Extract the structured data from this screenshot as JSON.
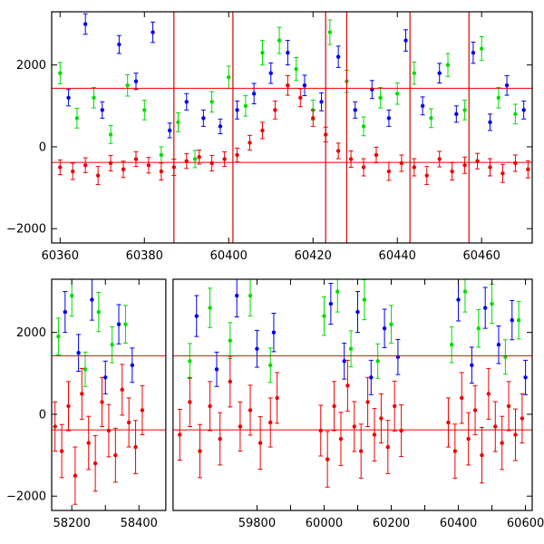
{
  "chart_data": [
    {
      "type": "scatter",
      "panel": "top",
      "title": "",
      "xlabel": "",
      "ylabel": "",
      "xlim": [
        60358,
        60472
      ],
      "ylim": [
        -2350,
        3300
      ],
      "x_ticks": [
        60360,
        60380,
        60400,
        60420,
        60440,
        60460
      ],
      "x_tick_labels": [
        "60360",
        "60380",
        "60400",
        "60420",
        "60440",
        "60460"
      ],
      "y_ticks": [
        -2000,
        0,
        2000
      ],
      "y_tick_labels": [
        "−2000",
        "0",
        "2000"
      ],
      "grid": false,
      "legend": "none",
      "reference_lines_y": [
        1430,
        -380
      ],
      "vertical_lines_x": [
        60387,
        60401,
        60423,
        60428,
        60443,
        60457
      ],
      "series": [
        {
          "color": "#0000ee",
          "x": [
            60362,
            60366,
            60370,
            60374,
            60378,
            60382,
            60386,
            60390,
            60394,
            60398,
            60402,
            60406,
            60410,
            60414,
            60418,
            60422,
            60426,
            60430,
            60434,
            60438,
            60442,
            60446,
            60450,
            60454,
            60458,
            60462,
            60466,
            60470
          ],
          "y": [
            1200,
            3000,
            900,
            2500,
            1600,
            2800,
            400,
            1100,
            700,
            500,
            900,
            1300,
            1800,
            2300,
            1500,
            1100,
            2200,
            900,
            1400,
            700,
            2600,
            1000,
            1800,
            800,
            2300,
            600,
            1500,
            900
          ],
          "err": [
            200,
            250,
            200,
            220,
            200,
            250,
            180,
            200,
            200,
            180,
            220,
            250,
            250,
            300,
            250,
            220,
            260,
            200,
            220,
            200,
            260,
            220,
            240,
            200,
            260,
            200,
            240,
            220
          ]
        },
        {
          "color": "#00dd00",
          "x": [
            60360,
            60364,
            60368,
            60372,
            60376,
            60380,
            60384,
            60388,
            60392,
            60396,
            60400,
            60404,
            60408,
            60412,
            60416,
            60420,
            60424,
            60428,
            60432,
            60436,
            60440,
            60444,
            60448,
            60452,
            60456,
            60460,
            60464,
            60468
          ],
          "y": [
            1800,
            700,
            1200,
            300,
            1500,
            900,
            -200,
            600,
            -300,
            1100,
            1700,
            1000,
            2300,
            2600,
            1900,
            900,
            2800,
            1600,
            500,
            1200,
            1300,
            1800,
            700,
            2000,
            900,
            2400,
            1200,
            800
          ],
          "err": [
            260,
            240,
            250,
            220,
            260,
            240,
            200,
            230,
            210,
            250,
            270,
            250,
            300,
            320,
            280,
            240,
            300,
            270,
            230,
            250,
            260,
            270,
            230,
            280,
            240,
            290,
            250,
            240
          ]
        },
        {
          "color": "#ee0000",
          "x": [
            60360,
            60363,
            60366,
            60369,
            60372,
            60375,
            60378,
            60381,
            60384,
            60387,
            60390,
            60393,
            60396,
            60399,
            60402,
            60405,
            60408,
            60411,
            60414,
            60417,
            60420,
            60423,
            60426,
            60429,
            60432,
            60435,
            60438,
            60441,
            60444,
            60447,
            60450,
            60453,
            60456,
            60459,
            60462,
            60465,
            60468,
            60471
          ],
          "y": [
            -500,
            -600,
            -450,
            -700,
            -400,
            -550,
            -300,
            -450,
            -600,
            -500,
            -350,
            -250,
            -400,
            -300,
            -200,
            100,
            400,
            900,
            1500,
            1200,
            700,
            300,
            -100,
            -300,
            -500,
            -200,
            -600,
            -400,
            -500,
            -700,
            -300,
            -600,
            -450,
            -350,
            -500,
            -650,
            -400,
            -550
          ],
          "err": [
            180,
            200,
            180,
            220,
            190,
            200,
            180,
            190,
            210,
            200,
            180,
            170,
            190,
            180,
            170,
            180,
            200,
            220,
            240,
            220,
            200,
            180,
            190,
            200,
            210,
            190,
            220,
            200,
            210,
            220,
            190,
            210,
            200,
            190,
            210,
            220,
            200,
            210
          ]
        }
      ]
    },
    {
      "type": "scatter",
      "panel": "bottom",
      "title": "",
      "xlabel": "",
      "ylabel": "",
      "xlim": [
        58140,
        60620
      ],
      "ylim": [
        -2350,
        3300
      ],
      "x_axis_break": true,
      "x_segments": [
        [
          58140,
          58480
        ],
        [
          59550,
          60620
        ]
      ],
      "x_ticks": [
        58200,
        58300,
        58400,
        59800,
        59900,
        60000,
        60100,
        60200,
        60300,
        60400,
        60500,
        60600
      ],
      "x_tick_labels": [
        "58200",
        "",
        "58400",
        "59800",
        "",
        "60000",
        "",
        "60200",
        "",
        "60400",
        "",
        "60600"
      ],
      "y_ticks": [
        -2000,
        0,
        2000
      ],
      "y_tick_labels": [
        "−2000",
        "0",
        "2000"
      ],
      "grid": false,
      "legend": "none",
      "reference_lines_y": [
        1430,
        -380
      ],
      "series": [
        {
          "color": "#0000ee",
          "x": [
            58180,
            58220,
            58260,
            58300,
            58340,
            58380,
            59620,
            59680,
            59740,
            59800,
            59850,
            60020,
            60060,
            60100,
            60140,
            60180,
            60220,
            60400,
            60440,
            60480,
            60520,
            60560,
            60600
          ],
          "y": [
            2500,
            1500,
            2800,
            900,
            2200,
            1200,
            2400,
            1100,
            2900,
            1600,
            2000,
            2700,
            1300,
            2500,
            900,
            2100,
            1400,
            2800,
            1200,
            2600,
            1700,
            2300,
            900
          ],
          "err": [
            500,
            450,
            500,
            400,
            480,
            420,
            500,
            420,
            520,
            450,
            470,
            500,
            440,
            500,
            420,
            470,
            430,
            520,
            440,
            500,
            460,
            480,
            420
          ]
        },
        {
          "color": "#00dd00",
          "x": [
            58160,
            58200,
            58240,
            58280,
            58320,
            58360,
            59600,
            59660,
            59720,
            59780,
            59840,
            60000,
            60040,
            60080,
            60120,
            60160,
            60200,
            60380,
            60420,
            60460,
            60500,
            60540,
            60580
          ],
          "y": [
            1900,
            2900,
            1100,
            2500,
            1700,
            2200,
            1300,
            2600,
            1800,
            2900,
            1200,
            2400,
            3000,
            1600,
            2800,
            1300,
            2200,
            1700,
            3000,
            2100,
            2700,
            1400,
            2300
          ],
          "err": [
            450,
            500,
            420,
            480,
            440,
            460,
            430,
            480,
            440,
            500,
            420,
            470,
            500,
            440,
            490,
            420,
            460,
            440,
            500,
            460,
            480,
            420,
            460
          ]
        },
        {
          "color": "#ee0000",
          "x": [
            58150,
            58170,
            58190,
            58210,
            58230,
            58250,
            58270,
            58290,
            58310,
            58330,
            58350,
            58370,
            58390,
            58410,
            59570,
            59600,
            59630,
            59660,
            59690,
            59720,
            59750,
            59780,
            59810,
            59840,
            59860,
            59990,
            60010,
            60030,
            60050,
            60070,
            60090,
            60110,
            60130,
            60150,
            60170,
            60190,
            60210,
            60230,
            60370,
            60390,
            60410,
            60430,
            60450,
            60470,
            60490,
            60510,
            60530,
            60550,
            60570,
            60590
          ],
          "y": [
            -300,
            -900,
            200,
            -1500,
            500,
            -700,
            -1200,
            300,
            -400,
            -1000,
            600,
            -200,
            -800,
            100,
            -500,
            300,
            -900,
            200,
            -600,
            800,
            -300,
            100,
            -700,
            -200,
            400,
            -400,
            -1100,
            200,
            -600,
            700,
            -300,
            -900,
            300,
            -500,
            -100,
            -800,
            200,
            -400,
            -200,
            -900,
            400,
            -600,
            100,
            -1000,
            500,
            -300,
            -700,
            200,
            -500,
            -100
          ],
          "err": [
            600,
            650,
            600,
            700,
            620,
            650,
            680,
            600,
            640,
            660,
            620,
            600,
            650,
            600,
            620,
            600,
            650,
            600,
            640,
            620,
            600,
            610,
            640,
            600,
            620,
            620,
            680,
            600,
            650,
            620,
            610,
            660,
            600,
            640,
            600,
            650,
            610,
            630,
            600,
            660,
            620,
            640,
            600,
            680,
            620,
            610,
            650,
            600,
            630,
            600
          ]
        }
      ]
    }
  ]
}
